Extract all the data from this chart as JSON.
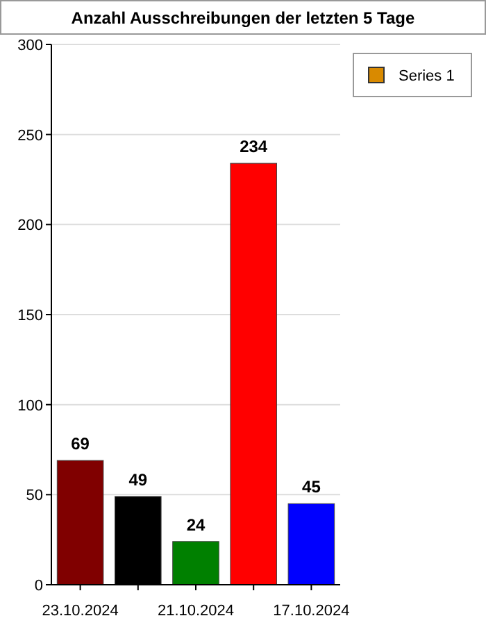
{
  "chart_data": {
    "type": "bar",
    "title": "Anzahl Ausschreibungen der letzten 5 Tage",
    "categories": [
      "23.10.2024",
      null,
      "21.10.2024",
      null,
      "17.10.2024"
    ],
    "series": [
      {
        "name": "Series 1",
        "color": "#d98a00",
        "values": [
          69,
          49,
          24,
          234,
          45
        ],
        "colors": [
          "#800000",
          "#000000",
          "#008000",
          "#ff0000",
          "#0000ff"
        ]
      }
    ],
    "ylim": [
      0,
      300
    ],
    "yticks": [
      0,
      50,
      100,
      150,
      200,
      250,
      300
    ],
    "grid": "y",
    "legend": "right",
    "data_labels": true
  }
}
